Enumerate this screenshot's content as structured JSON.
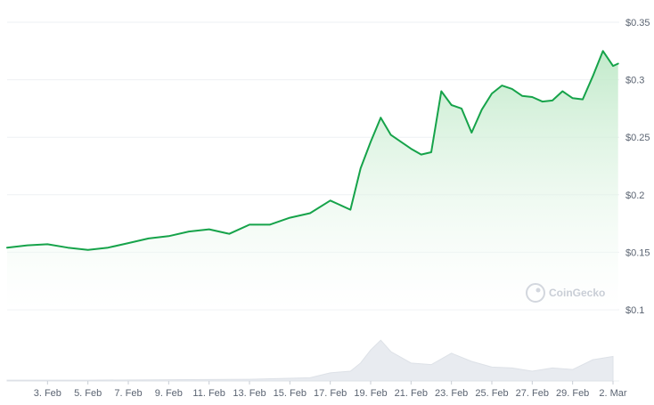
{
  "chart_data": {
    "type": "area",
    "y_ticks": [
      {
        "value": 0.35,
        "label": "$0.35"
      },
      {
        "value": 0.3,
        "label": "$0.3"
      },
      {
        "value": 0.25,
        "label": "$0.25"
      },
      {
        "value": 0.2,
        "label": "$0.2"
      },
      {
        "value": 0.15,
        "label": "$0.15"
      },
      {
        "value": 0.1,
        "label": "$0.1"
      }
    ],
    "ylim": [
      0.1,
      0.35
    ],
    "xlim": [
      "2024-02-01",
      "2024-03-02"
    ],
    "x_ticks": [
      {
        "date": "2024-02-03",
        "label": "3. Feb"
      },
      {
        "date": "2024-02-05",
        "label": "5. Feb"
      },
      {
        "date": "2024-02-07",
        "label": "7. Feb"
      },
      {
        "date": "2024-02-09",
        "label": "9. Feb"
      },
      {
        "date": "2024-02-11",
        "label": "11. Feb"
      },
      {
        "date": "2024-02-13",
        "label": "13. Feb"
      },
      {
        "date": "2024-02-15",
        "label": "15. Feb"
      },
      {
        "date": "2024-02-17",
        "label": "17. Feb"
      },
      {
        "date": "2024-02-19",
        "label": "19. Feb"
      },
      {
        "date": "2024-02-21",
        "label": "21. Feb"
      },
      {
        "date": "2024-02-23",
        "label": "23. Feb"
      },
      {
        "date": "2024-02-25",
        "label": "25. Feb"
      },
      {
        "date": "2024-02-27",
        "label": "27. Feb"
      },
      {
        "date": "2024-02-29",
        "label": "29. Feb"
      },
      {
        "date": "2024-03-02",
        "label": "2. Mar"
      }
    ],
    "price_series": {
      "x": [
        "2024-02-01",
        "2024-02-02",
        "2024-02-03",
        "2024-02-04",
        "2024-02-05",
        "2024-02-06",
        "2024-02-07",
        "2024-02-08",
        "2024-02-09",
        "2024-02-10",
        "2024-02-11",
        "2024-02-12",
        "2024-02-13",
        "2024-02-14",
        "2024-02-15",
        "2024-02-16",
        "2024-02-17",
        "2024-02-18",
        "2024-02-18T12:00",
        "2024-02-19",
        "2024-02-19T12:00",
        "2024-02-20",
        "2024-02-21",
        "2024-02-21T12:00",
        "2024-02-22",
        "2024-02-22T12:00",
        "2024-02-23",
        "2024-02-23T12:00",
        "2024-02-24",
        "2024-02-24T12:00",
        "2024-02-25",
        "2024-02-25T12:00",
        "2024-02-26",
        "2024-02-26T12:00",
        "2024-02-27",
        "2024-02-27T12:00",
        "2024-02-28",
        "2024-02-28T12:00",
        "2024-02-29",
        "2024-02-29T12:00",
        "2024-03-01",
        "2024-03-01T12:00",
        "2024-03-02",
        "2024-03-02T06:00"
      ],
      "y": [
        0.154,
        0.156,
        0.157,
        0.154,
        0.152,
        0.154,
        0.158,
        0.162,
        0.164,
        0.168,
        0.17,
        0.166,
        0.174,
        0.174,
        0.18,
        0.184,
        0.195,
        0.187,
        0.223,
        0.246,
        0.267,
        0.252,
        0.24,
        0.235,
        0.237,
        0.29,
        0.278,
        0.275,
        0.254,
        0.274,
        0.288,
        0.295,
        0.292,
        0.286,
        0.285,
        0.281,
        0.282,
        0.29,
        0.284,
        0.283,
        0.303,
        0.325,
        0.312,
        0.314
      ]
    },
    "volume_series": {
      "x": [
        "2024-02-01",
        "2024-02-05",
        "2024-02-09",
        "2024-02-13",
        "2024-02-16",
        "2024-02-17",
        "2024-02-18",
        "2024-02-18T12:00",
        "2024-02-19",
        "2024-02-19T12:00",
        "2024-02-20",
        "2024-02-21",
        "2024-02-22",
        "2024-02-23",
        "2024-02-24",
        "2024-02-25",
        "2024-02-26",
        "2024-02-27",
        "2024-02-28",
        "2024-02-29",
        "2024-03-01",
        "2024-03-02"
      ],
      "y": [
        1,
        1,
        1.5,
        2,
        4,
        10,
        12,
        22,
        38,
        50,
        36,
        22,
        20,
        34,
        24,
        17,
        16,
        12,
        16,
        14,
        26,
        30
      ]
    },
    "grid": true,
    "colors": {
      "line": "#16a34a",
      "area_top": "#bfe9c8",
      "area_bottom": "#ffffff",
      "volume": "#e8ebf0",
      "grid": "#eef0f3"
    },
    "watermark": "CoinGecko"
  }
}
